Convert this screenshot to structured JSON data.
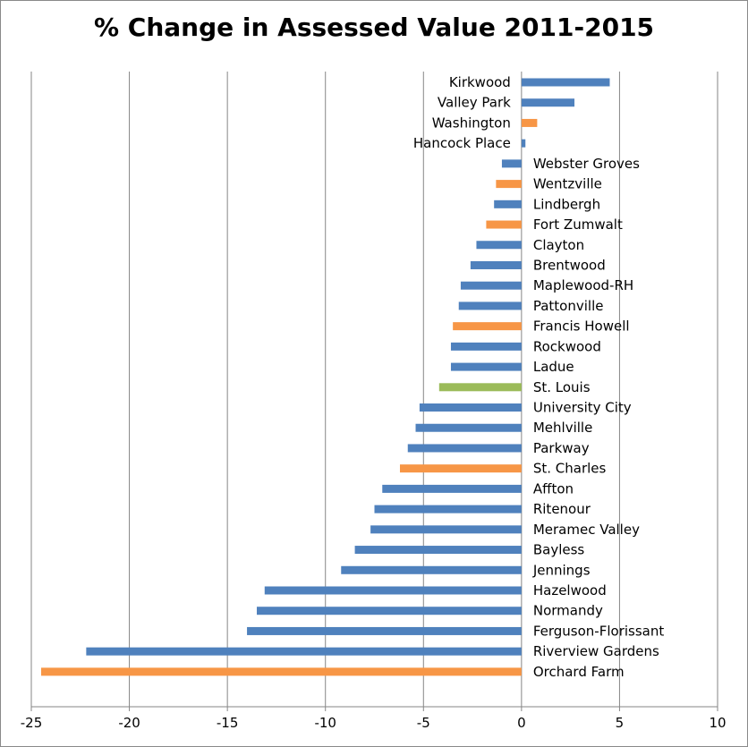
{
  "chart_data": {
    "type": "bar",
    "orientation": "horizontal",
    "title": "% Change in Assessed Value 2011-2015",
    "xlabel": "",
    "ylabel": "",
    "xlim": [
      -25,
      10
    ],
    "x_ticks": [
      -25,
      -20,
      -15,
      -10,
      -5,
      0,
      5,
      10
    ],
    "grid": "vertical",
    "legend": "none",
    "categories": [
      "Kirkwood",
      "Valley Park",
      "Washington",
      "Hancock Place",
      "Webster Groves",
      "Wentzville",
      "Lindbergh",
      "Fort Zumwalt",
      "Clayton",
      "Brentwood",
      "Maplewood-RH",
      "Pattonville",
      "Francis Howell",
      "Rockwood",
      "Ladue",
      "St. Louis",
      "University City",
      "Mehlville",
      "Parkway",
      "St. Charles",
      "Affton",
      "Ritenour",
      "Meramec Valley",
      "Bayless",
      "Jennings",
      "Hazelwood",
      "Normandy",
      "Ferguson-Florissant",
      "Riverview Gardens",
      "Orchard Farm"
    ],
    "values": [
      4.5,
      2.7,
      0.8,
      0.2,
      -1.0,
      -1.3,
      -1.4,
      -1.8,
      -2.3,
      -2.6,
      -3.1,
      -3.2,
      -3.5,
      -3.6,
      -3.6,
      -4.2,
      -5.2,
      -5.4,
      -5.8,
      -6.2,
      -7.1,
      -7.5,
      -7.7,
      -8.5,
      -9.2,
      -13.1,
      -13.5,
      -14.0,
      -22.2,
      -24.5
    ],
    "bar_colors": [
      "#4f81bd",
      "#4f81bd",
      "#f79646",
      "#4f81bd",
      "#4f81bd",
      "#f79646",
      "#4f81bd",
      "#f79646",
      "#4f81bd",
      "#4f81bd",
      "#4f81bd",
      "#4f81bd",
      "#f79646",
      "#4f81bd",
      "#4f81bd",
      "#9bbb59",
      "#4f81bd",
      "#4f81bd",
      "#4f81bd",
      "#f79646",
      "#4f81bd",
      "#4f81bd",
      "#4f81bd",
      "#4f81bd",
      "#4f81bd",
      "#4f81bd",
      "#4f81bd",
      "#4f81bd",
      "#4f81bd",
      "#f79646"
    ],
    "gridline_color": "#868686",
    "axis_color": "#868686"
  }
}
